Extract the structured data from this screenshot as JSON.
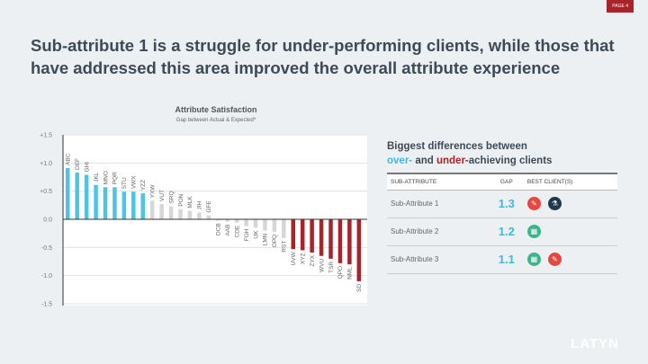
{
  "page_label": "PAGE 4",
  "headline": "Sub-attribute 1 is a struggle for under-performing clients, while those that have addressed this area improved the overall attribute experience",
  "chart_data": {
    "type": "bar",
    "title": "Attribute Satisfaction",
    "subtitle": "Gap between Actual & Expected*",
    "ylim": [
      -1.5,
      1.5
    ],
    "yticks": [
      "+1.5",
      "+1.0",
      "+0.5",
      "0.0",
      "-0.5",
      "-1.0",
      "-1.5"
    ],
    "ytick_values": [
      1.5,
      1.0,
      0.5,
      0,
      -0.5,
      -1.0,
      -1.5
    ],
    "grid": true,
    "categories": [
      "ABC",
      "DEF",
      "GHI",
      "JKL",
      "MNO",
      "PQR",
      "STU",
      "VWX",
      "YZZ",
      "YXW",
      "VUT",
      "SRQ",
      "PON",
      "MLK",
      "JIH",
      "GFE",
      "DCB",
      "AAB",
      "CDE",
      "FGH",
      "IJK",
      "LMN",
      "OPQ",
      "RST",
      "UVW",
      "XYZ",
      "ZYX",
      "WVU",
      "TSR",
      "QPO",
      "NML",
      "SD"
    ],
    "values": [
      0.91,
      0.83,
      0.79,
      0.61,
      0.57,
      0.57,
      0.49,
      0.49,
      0.46,
      0.33,
      0.27,
      0.23,
      0.18,
      0.15,
      0.12,
      0.07,
      -0.02,
      -0.04,
      -0.06,
      -0.12,
      -0.15,
      -0.2,
      -0.22,
      -0.33,
      -0.53,
      -0.55,
      -0.59,
      -0.65,
      -0.7,
      -0.78,
      -0.8,
      -1.1
    ],
    "groups": [
      "over",
      "over",
      "over",
      "over",
      "over",
      "over",
      "over",
      "over",
      "over",
      "mid",
      "mid",
      "mid",
      "mid",
      "mid",
      "mid",
      "mid",
      "mid",
      "mid",
      "mid",
      "mid",
      "mid",
      "mid",
      "mid",
      "mid",
      "under",
      "under",
      "under",
      "under",
      "under",
      "under",
      "under",
      "under"
    ],
    "colors": {
      "over": "#4dc3e6",
      "mid": "#d6d6d6",
      "under": "#a8232a"
    }
  },
  "panel": {
    "title_line1": "Biggest differences between",
    "over": "over-",
    "and": " and ",
    "under": "under-",
    "rest": "achieving clients",
    "headers": [
      "SUB-ATTRIBUTE",
      "GAP",
      "BEST CLIENT(S)"
    ],
    "rows": [
      {
        "name": "Sub-Attribute 1",
        "gap": "1.3",
        "icons": [
          "red-brush-icon",
          "navy-flask-icon"
        ]
      },
      {
        "name": "Sub-Attribute 2",
        "gap": "1.2",
        "icons": [
          "green-keyboard-icon"
        ]
      },
      {
        "name": "Sub-Attribute 3",
        "gap": "1.1",
        "icons": [
          "green-keyboard-icon",
          "red-brush-icon"
        ]
      }
    ]
  },
  "logo": "LATYN"
}
